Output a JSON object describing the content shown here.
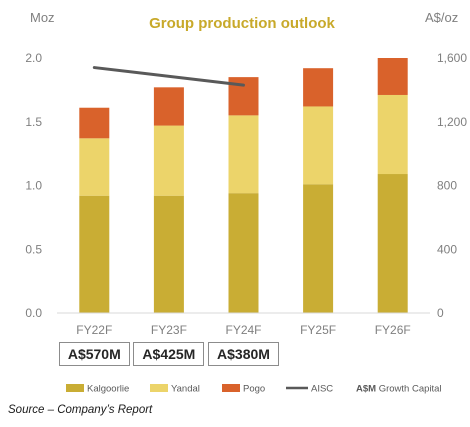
{
  "chart_data": {
    "type": "bar",
    "stacked": true,
    "title": "Group production outlook",
    "ylabel_left": "Moz",
    "ylabel_right": "A$/oz",
    "categories": [
      "FY22F",
      "FY23F",
      "FY24F",
      "FY25F",
      "FY26F"
    ],
    "ylim_left": [
      0,
      2.0
    ],
    "yticks_left": [
      "0.0",
      "0.5",
      "1.0",
      "1.5",
      "2.0"
    ],
    "ylim_right": [
      0,
      1600
    ],
    "yticks_right": [
      "0",
      "400",
      "800",
      "1,200",
      "1,600"
    ],
    "grid": false,
    "series": [
      {
        "name": "Kalgoorlie",
        "color": "#c9ad34",
        "values": [
          0.92,
          0.92,
          0.94,
          1.01,
          1.09
        ]
      },
      {
        "name": "Yandal",
        "color": "#ecd46a",
        "values": [
          0.45,
          0.55,
          0.61,
          0.61,
          0.62
        ]
      },
      {
        "name": "Pogo",
        "color": "#d9622b",
        "values": [
          0.24,
          0.3,
          0.3,
          0.3,
          0.29
        ]
      }
    ],
    "line": {
      "name": "AISC",
      "color": "#595959",
      "axis": "right",
      "values": [
        1540,
        null,
        1430,
        null,
        null
      ]
    },
    "growth_capital": {
      "legend_bold": "A$M",
      "legend_rest": " Growth Capital",
      "labels": [
        "A$570M",
        "A$425M",
        "A$380M"
      ]
    },
    "legend_position": "bottom"
  },
  "source": "Source – Company’s Report"
}
